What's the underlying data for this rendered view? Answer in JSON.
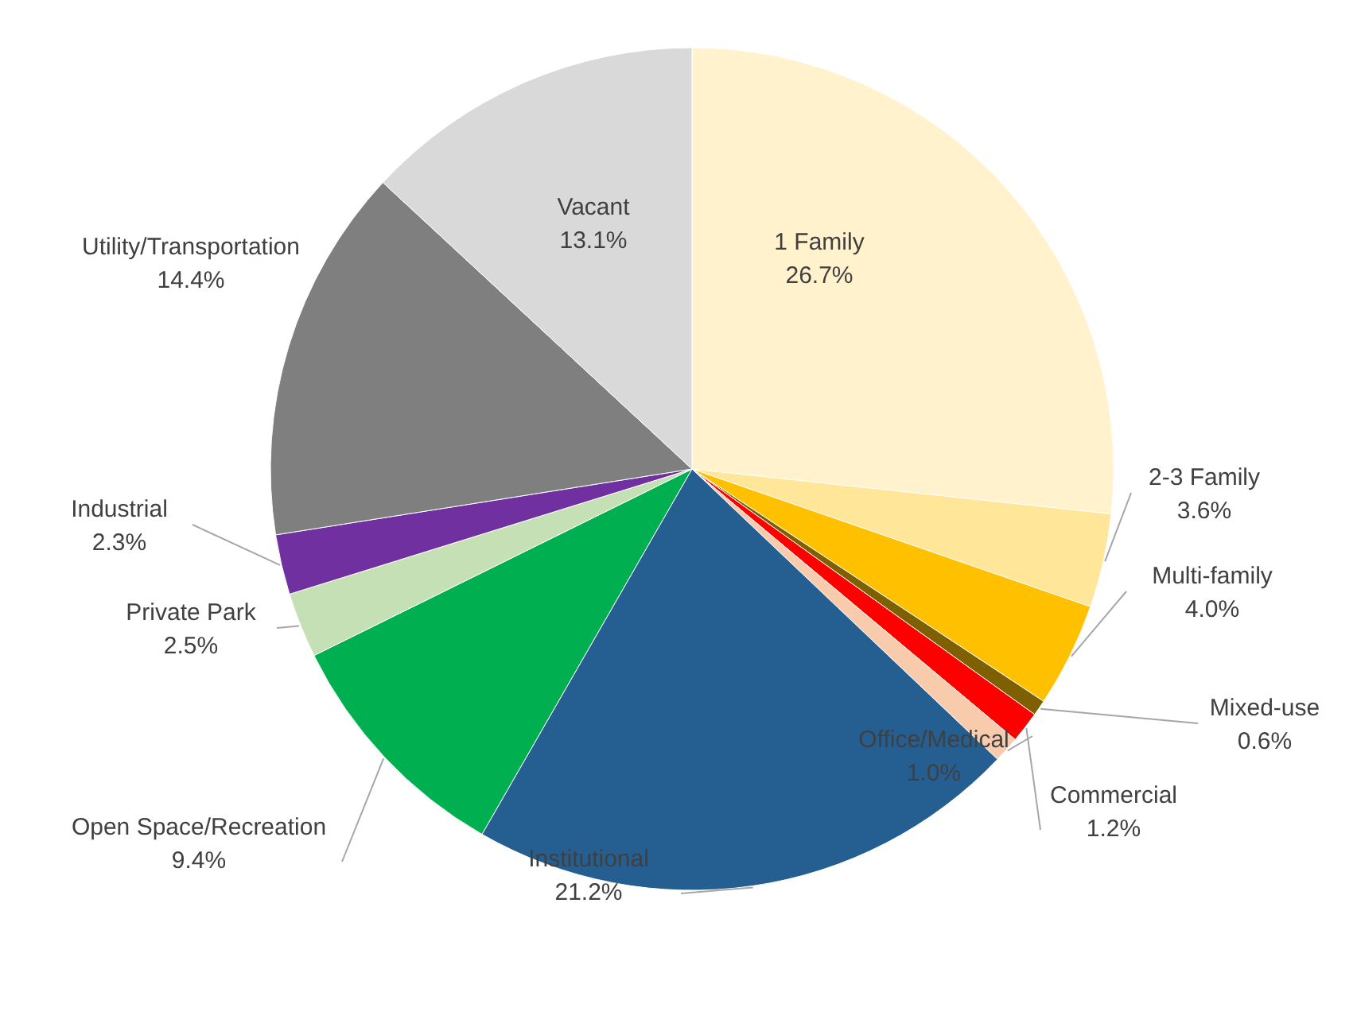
{
  "chart_data": {
    "type": "pie",
    "categories": [
      "1 Family",
      "2-3 Family",
      "Multi-family",
      "Mixed-use",
      "Commercial",
      "Office/Medical",
      "Institutional",
      "Open Space/Recreation",
      "Private Park",
      "Industrial",
      "Utility/Transportation",
      "Vacant"
    ],
    "values": [
      26.7,
      3.6,
      4.0,
      0.6,
      1.2,
      1.0,
      21.2,
      9.4,
      2.5,
      2.3,
      14.4,
      13.1
    ],
    "colors": [
      "#fff2cc",
      "#ffe699",
      "#ffc000",
      "#7f6000",
      "#ff0000",
      "#f8cbad",
      "#255e91",
      "#00b050",
      "#c5e0b4",
      "#7030a0",
      "#7f7f7f",
      "#d9d9d9"
    ],
    "value_labels": [
      "26.7%",
      "3.6%",
      "4.0%",
      "0.6%",
      "1.2%",
      "1.0%",
      "21.2%",
      "9.4%",
      "2.5%",
      "2.3%",
      "14.4%",
      "13.1%"
    ]
  }
}
